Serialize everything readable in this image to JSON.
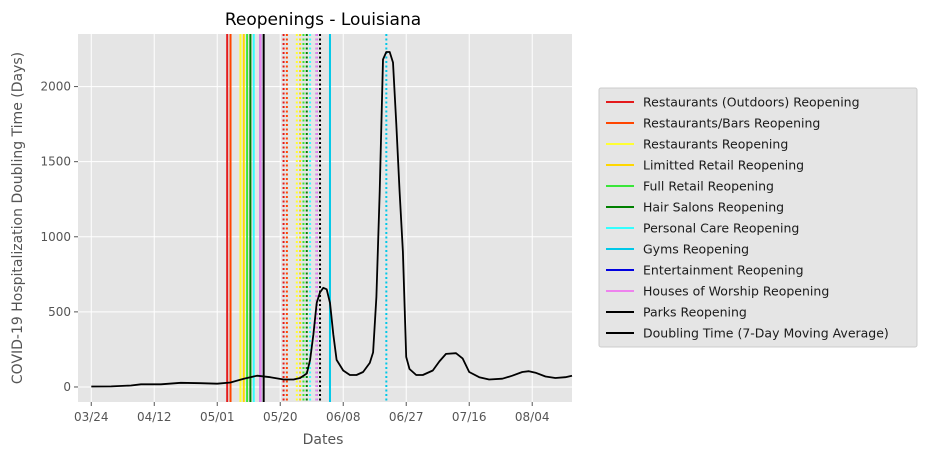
{
  "chart_data": {
    "type": "line",
    "title": "Reopenings - Louisiana",
    "xlabel": "Dates",
    "ylabel": "COVID-19 Hospitalization Doubling Time (Days)",
    "x_axis": {
      "type": "date",
      "start": "2020-03-24",
      "end": "2020-08-12"
    },
    "xlim": [
      "2020-03-20",
      "2020-08-16"
    ],
    "ylim": [
      -100,
      2350
    ],
    "x_ticks": [
      {
        "date": "2020-03-24",
        "label": "03/24"
      },
      {
        "date": "2020-04-12",
        "label": "04/12"
      },
      {
        "date": "2020-05-01",
        "label": "05/01"
      },
      {
        "date": "2020-05-20",
        "label": "05/20"
      },
      {
        "date": "2020-06-08",
        "label": "06/08"
      },
      {
        "date": "2020-06-27",
        "label": "06/27"
      },
      {
        "date": "2020-07-16",
        "label": "07/16"
      },
      {
        "date": "2020-08-04",
        "label": "08/04"
      }
    ],
    "y_ticks": [
      0,
      500,
      1000,
      1500,
      2000
    ],
    "grid": true,
    "background": "#e5e5e5",
    "legend_position": "outside-right",
    "series": [
      {
        "name": "Doubling Time (7-Day Moving Average)",
        "color": "#000000",
        "points": [
          [
            "2020-03-24",
            3
          ],
          [
            "2020-03-30",
            4
          ],
          [
            "2020-04-05",
            10
          ],
          [
            "2020-04-08",
            18
          ],
          [
            "2020-04-14",
            18
          ],
          [
            "2020-04-20",
            28
          ],
          [
            "2020-04-26",
            25
          ],
          [
            "2020-05-01",
            22
          ],
          [
            "2020-05-05",
            30
          ],
          [
            "2020-05-09",
            55
          ],
          [
            "2020-05-13",
            75
          ],
          [
            "2020-05-17",
            65
          ],
          [
            "2020-05-21",
            50
          ],
          [
            "2020-05-24",
            50
          ],
          [
            "2020-05-26",
            60
          ],
          [
            "2020-05-28",
            90
          ],
          [
            "2020-05-29",
            180
          ],
          [
            "2020-05-30",
            350
          ],
          [
            "2020-05-31",
            560
          ],
          [
            "2020-06-01",
            630
          ],
          [
            "2020-06-02",
            660
          ],
          [
            "2020-06-03",
            650
          ],
          [
            "2020-06-04",
            560
          ],
          [
            "2020-06-05",
            350
          ],
          [
            "2020-06-06",
            180
          ],
          [
            "2020-06-08",
            110
          ],
          [
            "2020-06-10",
            80
          ],
          [
            "2020-06-12",
            80
          ],
          [
            "2020-06-14",
            100
          ],
          [
            "2020-06-16",
            160
          ],
          [
            "2020-06-17",
            230
          ],
          [
            "2020-06-18",
            600
          ],
          [
            "2020-06-19",
            1300
          ],
          [
            "2020-06-20",
            2180
          ],
          [
            "2020-06-21",
            2230
          ],
          [
            "2020-06-22",
            2230
          ],
          [
            "2020-06-23",
            2160
          ],
          [
            "2020-06-24",
            1750
          ],
          [
            "2020-06-25",
            1300
          ],
          [
            "2020-06-26",
            900
          ],
          [
            "2020-06-27",
            200
          ],
          [
            "2020-06-28",
            120
          ],
          [
            "2020-06-30",
            80
          ],
          [
            "2020-07-02",
            80
          ],
          [
            "2020-07-05",
            110
          ],
          [
            "2020-07-07",
            170
          ],
          [
            "2020-07-09",
            220
          ],
          [
            "2020-07-12",
            225
          ],
          [
            "2020-07-14",
            190
          ],
          [
            "2020-07-16",
            100
          ],
          [
            "2020-07-19",
            65
          ],
          [
            "2020-07-22",
            50
          ],
          [
            "2020-07-26",
            55
          ],
          [
            "2020-07-29",
            75
          ],
          [
            "2020-08-01",
            100
          ],
          [
            "2020-08-03",
            105
          ],
          [
            "2020-08-05",
            95
          ],
          [
            "2020-08-08",
            70
          ],
          [
            "2020-08-11",
            60
          ],
          [
            "2020-08-14",
            65
          ],
          [
            "2020-08-16",
            75
          ]
        ]
      }
    ],
    "reopenings": [
      {
        "name": "Restaurants (Outdoors) Reopening",
        "color": "#e41a1c",
        "solid_date": "2020-05-04",
        "dotted_date": "2020-05-21"
      },
      {
        "name": "Restaurants/Bars Reopening",
        "color": "#ff4500",
        "solid_date": "2020-05-05",
        "dotted_date": "2020-05-22"
      },
      {
        "name": "Restaurants Reopening",
        "color": "#ffff33",
        "solid_date": "2020-05-08",
        "dotted_date": "2020-05-25"
      },
      {
        "name": "Limitted Retail Reopening",
        "color": "#ffd700",
        "solid_date": "2020-05-09",
        "dotted_date": "2020-05-26"
      },
      {
        "name": "Full Retail Reopening",
        "color": "#39e639",
        "solid_date": "2020-05-10",
        "dotted_date": "2020-05-27"
      },
      {
        "name": "Hair Salons Reopening",
        "color": "#008000",
        "solid_date": "2020-05-11",
        "dotted_date": "2020-05-28"
      },
      {
        "name": "Personal Care Reopening",
        "color": "#33ffff",
        "solid_date": "2020-05-12",
        "dotted_date": "2020-05-29"
      },
      {
        "name": "Gyms Reopening",
        "color": "#00c8e8",
        "solid_date": "2020-06-04",
        "dotted_date": "2020-06-21"
      },
      {
        "name": "Entertainment Reopening",
        "color": "#0000e0",
        "solid_date": "2020-05-14",
        "dotted_date": "2020-05-31"
      },
      {
        "name": "Houses of Worship Reopening",
        "color": "#ee82ee",
        "solid_date": "2020-05-14",
        "dotted_date": "2020-05-31"
      },
      {
        "name": "Parks Reopening",
        "color": "#000000",
        "solid_date": "2020-05-15",
        "dotted_date": "2020-06-01"
      }
    ],
    "legend": [
      {
        "label": "Restaurants (Outdoors) Reopening",
        "color": "#e41a1c"
      },
      {
        "label": "Restaurants/Bars Reopening",
        "color": "#ff4500"
      },
      {
        "label": "Restaurants Reopening",
        "color": "#ffff33"
      },
      {
        "label": "Limitted Retail Reopening",
        "color": "#ffd700"
      },
      {
        "label": "Full Retail Reopening",
        "color": "#39e639"
      },
      {
        "label": "Hair Salons Reopening",
        "color": "#008000"
      },
      {
        "label": "Personal Care Reopening",
        "color": "#33ffff"
      },
      {
        "label": "Gyms Reopening",
        "color": "#00c8e8"
      },
      {
        "label": "Entertainment Reopening",
        "color": "#0000e0"
      },
      {
        "label": "Houses of Worship Reopening",
        "color": "#ee82ee"
      },
      {
        "label": "Parks Reopening",
        "color": "#000000"
      },
      {
        "label": "Doubling Time (7-Day Moving Average)",
        "color": "#000000"
      }
    ]
  }
}
